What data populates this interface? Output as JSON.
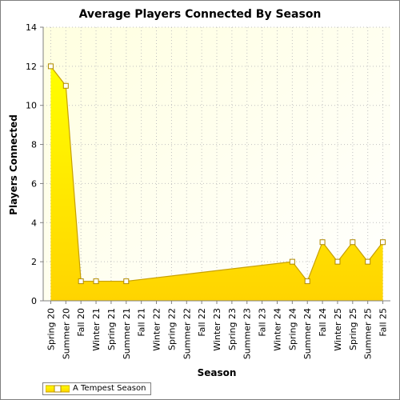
{
  "chart_data": {
    "type": "area",
    "title": "Average Players Connected By Season",
    "xlabel": "Season",
    "ylabel": "Players Connected",
    "categories": [
      "Spring 20",
      "Summer 20",
      "Fall 20",
      "Winter 21",
      "Spring 21",
      "Summer 21",
      "Fall 21",
      "Winter 22",
      "Spring 22",
      "Summer 22",
      "Fall 22",
      "Winter 23",
      "Spring 23",
      "Summer 23",
      "Fall 23",
      "Winter 24",
      "Spring 24",
      "Summer 24",
      "Fall 24",
      "Winter 25",
      "Spring 25",
      "Summer 25",
      "Fall 25"
    ],
    "series": [
      {
        "name": "A Tempest Season",
        "values": [
          12,
          11,
          1,
          1,
          null,
          1,
          null,
          null,
          null,
          null,
          null,
          null,
          null,
          null,
          null,
          null,
          2,
          1,
          3,
          2,
          3,
          2,
          3
        ]
      }
    ],
    "ylim": [
      0,
      14
    ],
    "yticks": [
      0,
      2,
      4,
      6,
      8,
      10,
      12,
      14
    ],
    "grid": true,
    "legend": "bottom-left",
    "colors": {
      "fill_top": "#ffff00",
      "fill_bottom": "#ffd400",
      "line": "#c8a000",
      "marker_fill": "#ffffff",
      "marker_stroke": "#b08a00",
      "plot_bg_top": "#ffffe0",
      "plot_bg_bottom": "#ffffff",
      "grid": "#c0c0c0"
    }
  }
}
